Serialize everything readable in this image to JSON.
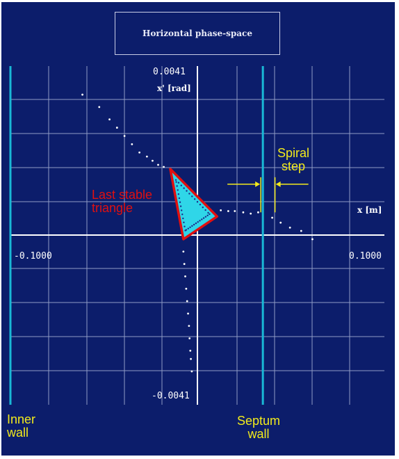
{
  "title": "Horizontal phase-space",
  "chart_data": {
    "type": "scatter",
    "title": "Horizontal phase-space",
    "xlabel": "x [m]",
    "ylabel": "x' [rad]",
    "xlim": [
      -0.1,
      0.1
    ],
    "ylim": [
      -0.0041,
      0.0041
    ],
    "x_tick_labels": {
      "min": "-0.1000",
      "max": "0.1000"
    },
    "y_tick_labels": {
      "max": "0.0041",
      "min": "-0.0041"
    },
    "grid": true,
    "walls": [
      {
        "name": "Inner wall",
        "x": -0.1
      },
      {
        "name": "Septum wall",
        "x": 0.035
      }
    ],
    "last_stable_triangle": {
      "label": "Last stable triangle",
      "vertices": [
        [
          -0.0145,
          0.0016
        ],
        [
          0.0105,
          0.00045
        ],
        [
          -0.0075,
          -0.0001
        ]
      ],
      "edge_color": "#e01010",
      "fill_color": "#2fd6e8"
    },
    "separatrix_points": [
      [
        -0.0615,
        0.0034
      ],
      [
        -0.0525,
        0.0031
      ],
      [
        -0.047,
        0.0028
      ],
      [
        -0.043,
        0.0026
      ],
      [
        -0.039,
        0.0024
      ],
      [
        -0.035,
        0.0022
      ],
      [
        -0.031,
        0.002
      ],
      [
        -0.027,
        0.0019
      ],
      [
        -0.024,
        0.0018
      ],
      [
        -0.021,
        0.0017
      ],
      [
        -0.018,
        0.00165
      ],
      [
        0.0125,
        0.0006
      ],
      [
        0.0165,
        0.00058
      ],
      [
        0.02,
        0.00058
      ],
      [
        0.0245,
        0.00055
      ],
      [
        0.0285,
        0.00052
      ],
      [
        0.0325,
        0.00055
      ],
      [
        0.04,
        0.00042
      ],
      [
        0.0445,
        0.0003
      ],
      [
        0.0495,
        0.00018
      ],
      [
        0.0555,
        0.0001
      ],
      [
        0.0615,
        -0.0001
      ],
      [
        -0.0075,
        -0.0004
      ],
      [
        -0.007,
        -0.0007
      ],
      [
        -0.0065,
        -0.001
      ],
      [
        -0.006,
        -0.0013
      ],
      [
        -0.0055,
        -0.0016
      ],
      [
        -0.005,
        -0.0019
      ],
      [
        -0.0045,
        -0.0022
      ],
      [
        -0.0042,
        -0.0025
      ],
      [
        -0.0038,
        -0.0028
      ],
      [
        -0.0035,
        -0.003
      ],
      [
        -0.003,
        -0.0033
      ]
    ],
    "spiral_step": {
      "label": "Spiral step",
      "x1": 0.035,
      "x2": 0.0415,
      "y_top": 0.0014,
      "y_bottom": 0.00055
    }
  },
  "annotations": {
    "spiral_step": "Spiral step",
    "last_stable_triangle": "Last stable triangle",
    "inner_wall": "Inner wall",
    "septum_wall": "Septum wall"
  },
  "colors": {
    "background": "#0c1d6b",
    "grid": "#8f9bc6",
    "axes": "#ffffff",
    "walls": "#19b8d6",
    "annotation_yellow": "#f2ea1c",
    "annotation_red": "#e01010"
  }
}
